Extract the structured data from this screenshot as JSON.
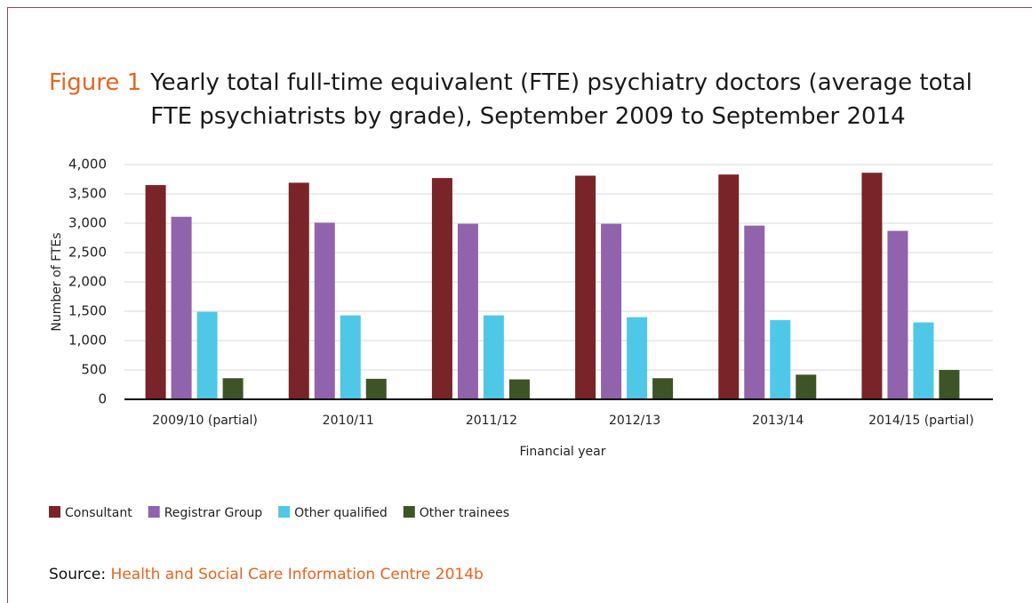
{
  "chart_data": {
    "type": "bar",
    "figure_label": "Figure 1",
    "title": "Yearly total full-time equivalent (FTE) psychiatry doctors (average total FTE psychiatrists by grade), September 2009 to September 2014",
    "x_label": "Financial year",
    "y_label": "Number of FTEs",
    "categories": [
      "2009/10 (partial)",
      "2010/11",
      "2011/12",
      "2012/13",
      "2013/14",
      "2014/15 (partial)"
    ],
    "series": [
      {
        "name": "Consultant",
        "color": "#782428",
        "values": [
          3650,
          3690,
          3770,
          3810,
          3830,
          3860
        ]
      },
      {
        "name": "Registrar Group",
        "color": "#9163ad",
        "values": [
          3110,
          3010,
          2990,
          2990,
          2960,
          2870
        ]
      },
      {
        "name": "Other qualified",
        "color": "#4fc8e8",
        "values": [
          1490,
          1430,
          1430,
          1400,
          1350,
          1310
        ]
      },
      {
        "name": "Other trainees",
        "color": "#3d5526",
        "values": [
          360,
          350,
          340,
          360,
          420,
          500
        ]
      }
    ],
    "ylim": [
      0,
      4000
    ],
    "yticks": [
      0,
      500,
      {
        "value": 1000,
        "label": "1,000"
      },
      {
        "value": 1500,
        "label": "1,500"
      },
      {
        "value": 2000,
        "label": "2,000"
      },
      {
        "value": 2500,
        "label": "2,500"
      },
      {
        "value": 3000,
        "label": "3,000"
      },
      {
        "value": 3500,
        "label": "3,500"
      },
      {
        "value": 4000,
        "label": "4,000"
      }
    ],
    "grid": true,
    "legend": "bottom-left",
    "source_label": "Source:",
    "source": "Health and Social Care Information Centre 2014b"
  }
}
